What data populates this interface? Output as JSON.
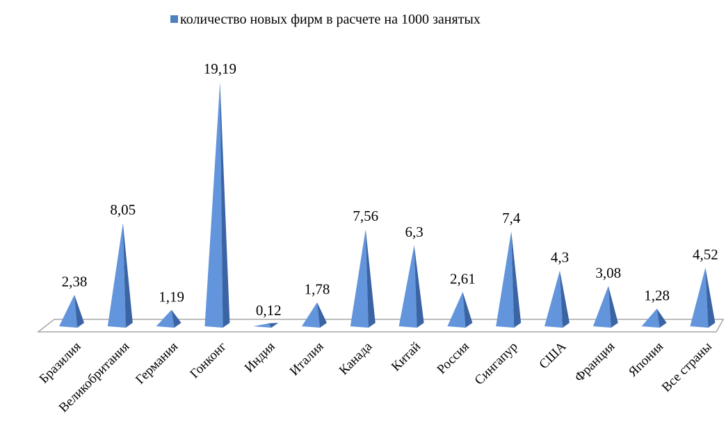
{
  "chart_data": {
    "type": "pyramid3d",
    "categories": [
      "Бразилия",
      "Великобритания",
      "Германия",
      "Гонконг",
      "Индия",
      "Италия",
      "Канада",
      "Китай",
      "Россия",
      "Сингапур",
      "США",
      "Франция",
      "Япония",
      "Все страны"
    ],
    "series": [
      {
        "name": "количество новых фирм в расчете на 1000 занятых",
        "color": "#4f81bd",
        "values": [
          2.38,
          8.05,
          1.19,
          19.19,
          0.12,
          1.78,
          7.56,
          6.3,
          2.61,
          7.4,
          4.3,
          3.08,
          1.28,
          4.52
        ],
        "value_labels": [
          "2,38",
          "8,05",
          "1,19",
          "19,19",
          "0,12",
          "1,78",
          "7,56",
          "6,3",
          "2,61",
          "7,4",
          "4,3",
          "3,08",
          "1,28",
          "4,52"
        ]
      }
    ],
    "legend": "top"
  }
}
